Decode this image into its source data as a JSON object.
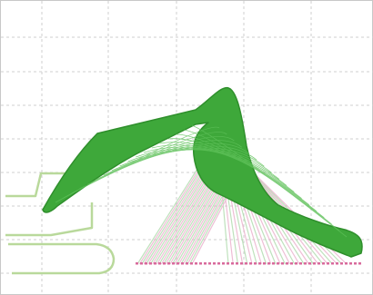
{
  "figure": {
    "colors": {
      "background": "#ffffff",
      "grid": "#cfcfcf",
      "boom_sweep": "#3ea83a",
      "boom_sweep_dark": "#2f8f2c",
      "machine_outline": "#b9d99b",
      "ghost_pink": "#e9a9c8",
      "ghost_green": "#a9d8a6",
      "ground_marks": "#d86a9c"
    }
  }
}
